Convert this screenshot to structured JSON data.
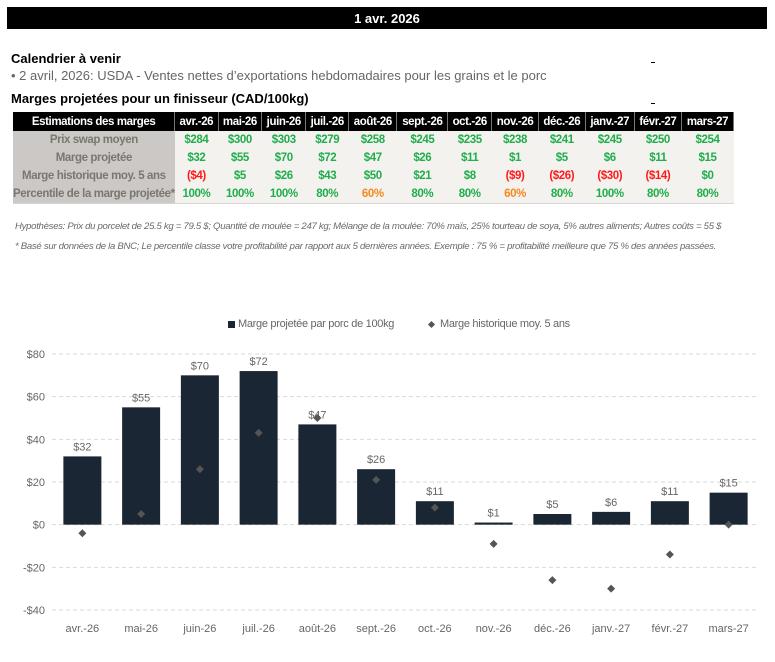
{
  "header": {
    "date": "1 avr. 2026"
  },
  "calendar": {
    "title": "Calendrier à venir",
    "items": [
      "• 2 avril, 2026: USDA - Ventes nettes d’exportations hebdomadaires pour les grains et le porc"
    ]
  },
  "margins_section": {
    "title": "Marges projetées pour un finisseur (CAD/100kg)"
  },
  "table": {
    "corner_header": "Estimations des marges",
    "months": [
      "avr.-26",
      "mai-26",
      "juin-26",
      "juil.-26",
      "août-26",
      "sept.-26",
      "oct.-26",
      "nov.-26",
      "déc.-26",
      "janv.-27",
      "févr.-27",
      "mars-27"
    ],
    "rows": [
      {
        "label": "Prix swap moyen",
        "values": [
          "$284",
          "$300",
          "$303",
          "$279",
          "$258",
          "$245",
          "$235",
          "$238",
          "$241",
          "$245",
          "$250",
          "$254"
        ],
        "status": [
          "pos",
          "pos",
          "pos",
          "pos",
          "pos",
          "pos",
          "pos",
          "pos",
          "pos",
          "pos",
          "pos",
          "pos"
        ]
      },
      {
        "label": "Marge projetée",
        "values": [
          "$32",
          "$55",
          "$70",
          "$72",
          "$47",
          "$26",
          "$11",
          "$1",
          "$5",
          "$6",
          "$11",
          "$15"
        ],
        "status": [
          "pos",
          "pos",
          "pos",
          "pos",
          "pos",
          "pos",
          "pos",
          "pos",
          "pos",
          "pos",
          "pos",
          "pos"
        ]
      },
      {
        "label": "Marge historique moy. 5 ans",
        "values": [
          "($4)",
          "$5",
          "$26",
          "$43",
          "$50",
          "$21",
          "$8",
          "($9)",
          "($26)",
          "($30)",
          "($14)",
          "$0"
        ],
        "status": [
          "neg",
          "pos",
          "pos",
          "pos",
          "pos",
          "pos",
          "pos",
          "neg",
          "neg",
          "neg",
          "neg",
          "pos"
        ]
      },
      {
        "label": "Percentile de la marge projetée*",
        "values": [
          "100%",
          "100%",
          "100%",
          "80%",
          "60%",
          "80%",
          "80%",
          "60%",
          "80%",
          "100%",
          "80%",
          "80%"
        ],
        "status": [
          "pos",
          "pos",
          "pos",
          "pos",
          "warn",
          "pos",
          "pos",
          "warn",
          "pos",
          "pos",
          "pos",
          "pos"
        ]
      }
    ],
    "colors": {
      "pos": "#1fae4b",
      "neg": "#ff1a1a",
      "warn": "#f38a1e"
    }
  },
  "notes": {
    "hypotheses": "Hypothèses: Prix du porcelet de 25.5 kg = 79.5 $; Quantité de moulée = 247 kg; Mélange de la moulée: 70% maïs, 25% tourteau de soya, 5% autres aliments; Autres coûts = 55 $",
    "footnote": "* Basé sur données de la BNC; Le percentile classe votre profitabilité par rapport aux 5 dernières années. Exemple : 75 % = profitabilité meilleure que 75 % des années passées."
  },
  "chart_data": {
    "type": "bar",
    "title": "",
    "xlabel": "",
    "ylabel": "",
    "categories": [
      "avr.-26",
      "mai-26",
      "juin-26",
      "juil.-26",
      "août-26",
      "sept.-26",
      "oct.-26",
      "nov.-26",
      "déc.-26",
      "janv.-27",
      "févr.-27",
      "mars-27"
    ],
    "series": [
      {
        "name": "Marge projetée par porc de 100kg",
        "type": "bar",
        "color": "#1a2633",
        "values": [
          32,
          55,
          70,
          72,
          47,
          26,
          11,
          1,
          5,
          6,
          11,
          15
        ],
        "data_labels": [
          "$32",
          "$55",
          "$70",
          "$72",
          "$47",
          "$26",
          "$11",
          "$1",
          "$5",
          "$6",
          "$11",
          "$15"
        ]
      },
      {
        "name": "Marge historique moy. 5 ans",
        "type": "scatter",
        "marker": "diamond",
        "color": "#555555",
        "values": [
          -4,
          5,
          26,
          43,
          50,
          21,
          8,
          -9,
          -26,
          -30,
          -14,
          0
        ]
      }
    ],
    "ylim": [
      -40,
      80
    ],
    "yticks": [
      80,
      60,
      40,
      20,
      0,
      -20,
      -40
    ],
    "ytick_labels": [
      "$80",
      "$60",
      "$40",
      "$20",
      "$0",
      "-$20",
      "-$40"
    ],
    "grid": true,
    "legend_position": "top-center"
  }
}
